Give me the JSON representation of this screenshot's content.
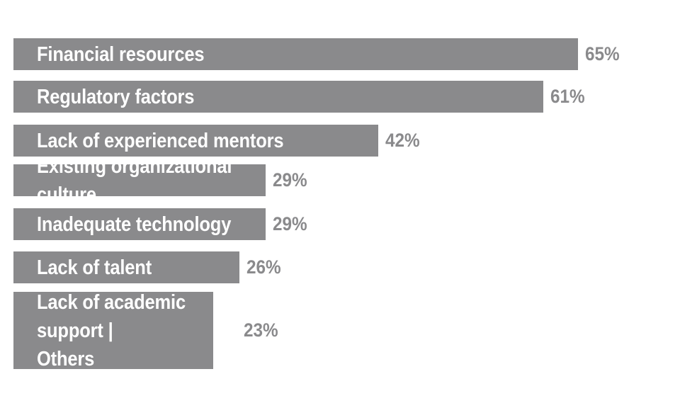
{
  "chart_data": {
    "type": "bar",
    "orientation": "horizontal",
    "categories": [
      "Financial resources",
      "Regulatory factors",
      "Lack of experienced mentors",
      "Existing organizational culture",
      "Inadequate technology",
      "Lack of talent",
      "Lack of academic support |\nOthers"
    ],
    "values": [
      65,
      61,
      42,
      29,
      29,
      26,
      23
    ],
    "value_labels": [
      "65%",
      "61%",
      "42%",
      "29%",
      "29%",
      "26%",
      "23%"
    ],
    "unit": "%",
    "xlim": [
      0,
      100
    ],
    "grid": false,
    "legend": "none",
    "bar_color": "#8a8a8c",
    "label_color": "#ffffff",
    "value_label_color": "#8a8a8c"
  }
}
